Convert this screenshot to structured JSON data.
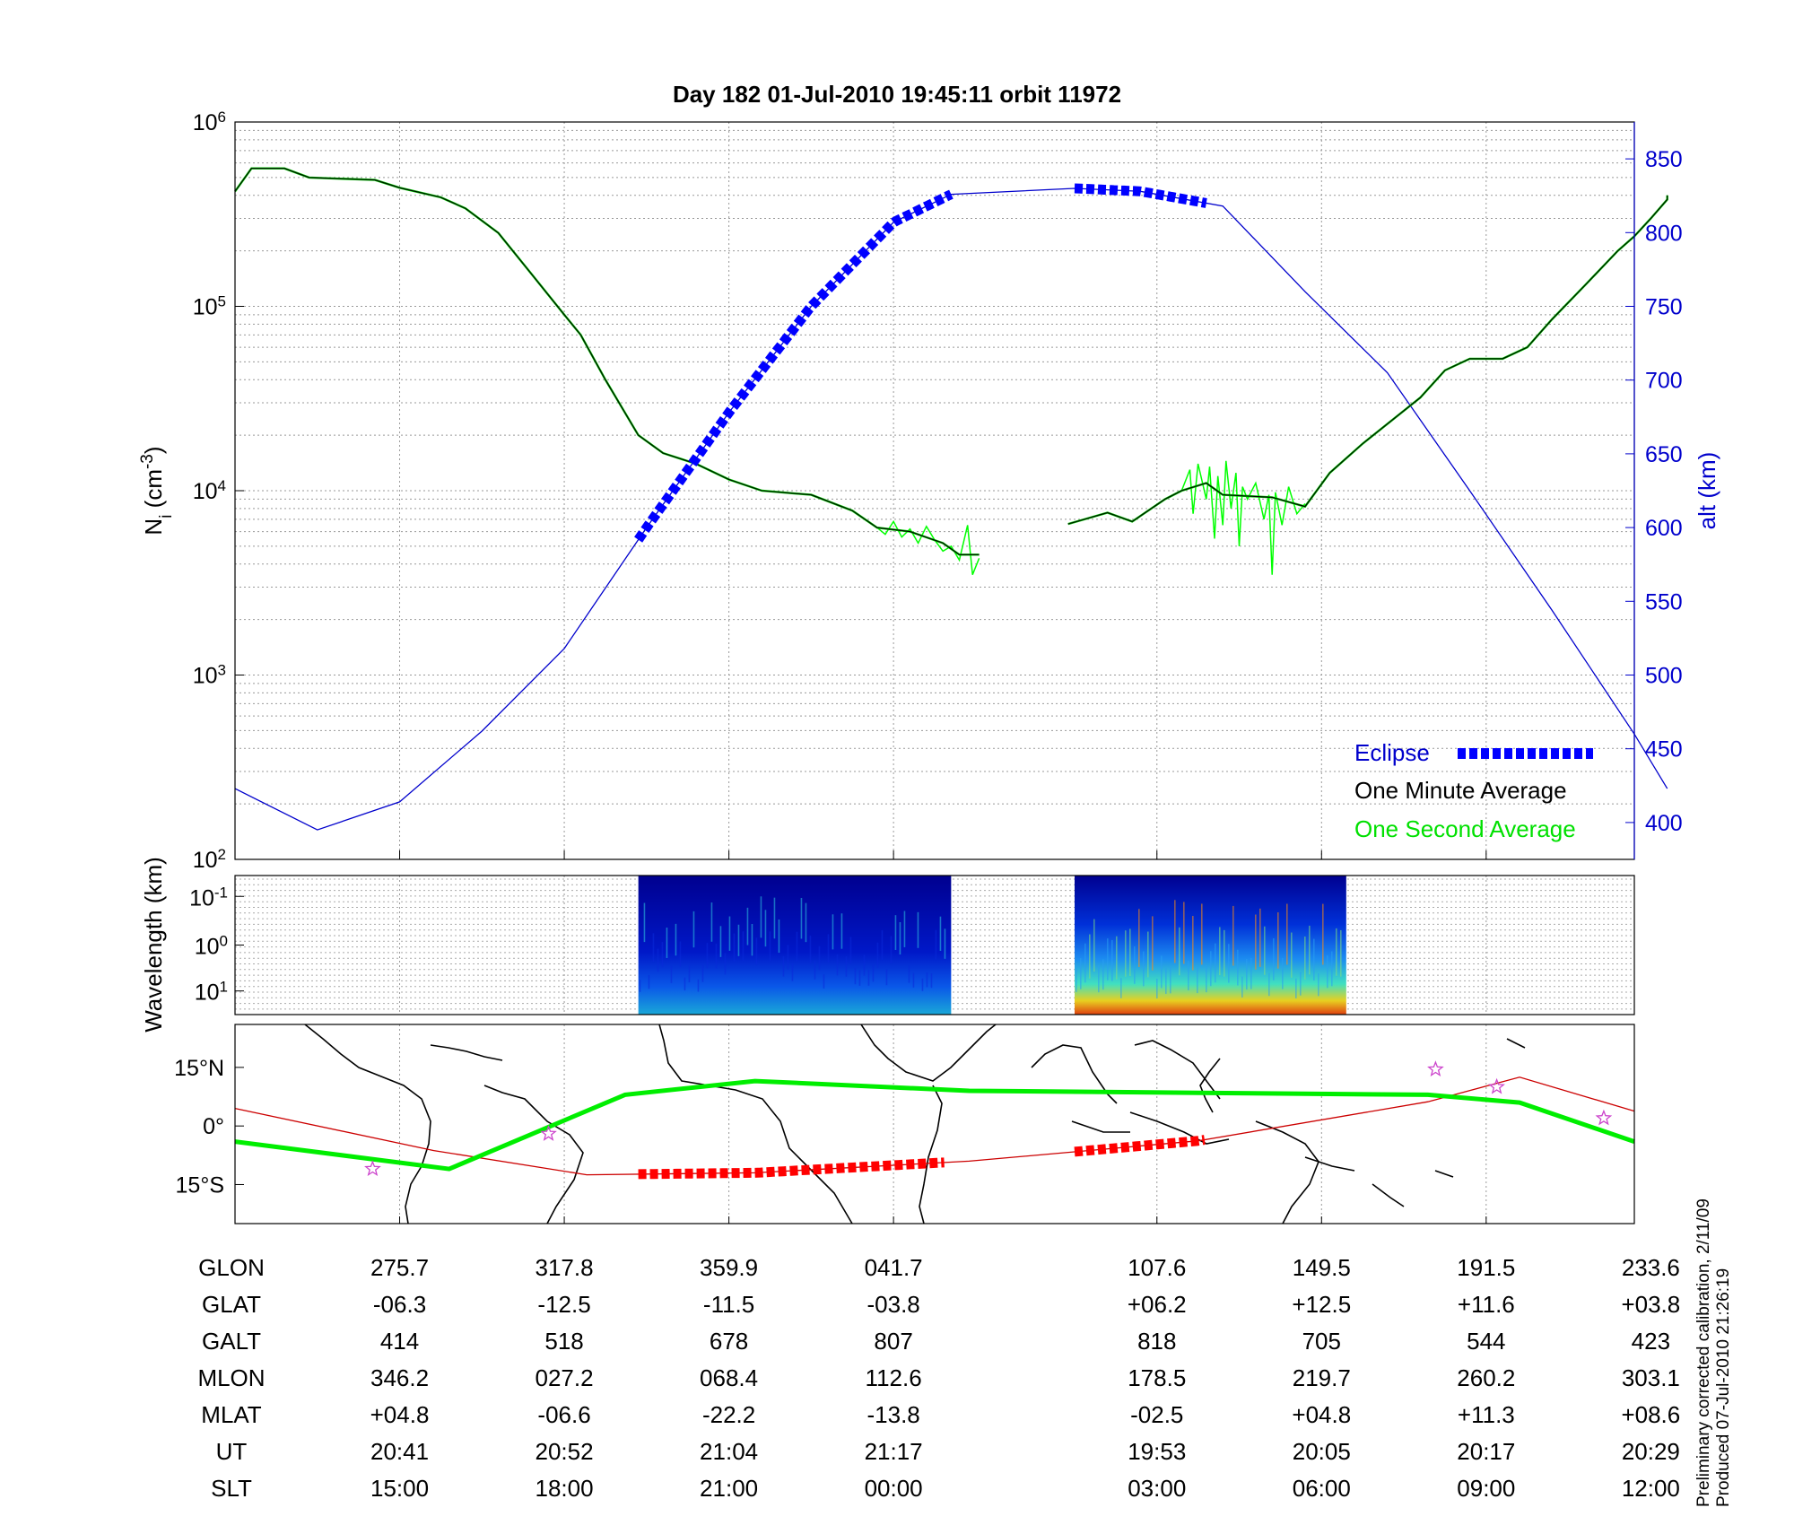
{
  "chart_data": [
    {
      "type": "line",
      "title": "Day 182  01-Jul-2010 19:45:11   orbit 11972",
      "ylabel": "N_i (cm^-3)",
      "ylabel_base": "N",
      "ylabel_sub": "i",
      "ylabel_unit_pre": " (cm",
      "ylabel_unit_sup": "-3",
      "ylabel_unit_post": ")",
      "yscale": "log",
      "ylim": [
        100,
        1000000
      ],
      "ytick_base": "10",
      "yticks": [
        {
          "exp": "2",
          "v": 2
        },
        {
          "exp": "3",
          "v": 3
        },
        {
          "exp": "4",
          "v": 4
        },
        {
          "exp": "5",
          "v": 5
        },
        {
          "exp": "6",
          "v": 6
        }
      ],
      "y2label": "alt (km)",
      "y2lim": [
        375,
        875
      ],
      "y2ticks": [
        400,
        450,
        500,
        550,
        600,
        650,
        700,
        750,
        800,
        850
      ],
      "x_index_range": [
        -1,
        7.5
      ],
      "legend_position": "bottom-right",
      "legend": [
        "Eclipse",
        "One Minute Average",
        "One Second Average"
      ],
      "series": [
        {
          "name": "One Minute Average (Ni)",
          "color": "#000000",
          "points": [
            [
              -1.0,
              420000
            ],
            [
              -0.9,
              560000
            ],
            [
              -0.7,
              560000
            ],
            [
              -0.55,
              500000
            ],
            [
              -0.15,
              485000
            ],
            [
              0.0,
              440000
            ],
            [
              0.25,
              390000
            ],
            [
              0.4,
              340000
            ],
            [
              0.6,
              250000
            ],
            [
              0.8,
              150000
            ],
            [
              1.0,
              90000
            ],
            [
              1.1,
              70000
            ],
            [
              1.25,
              40000
            ],
            [
              1.45,
              20000
            ],
            [
              1.6,
              16000
            ],
            [
              1.8,
              14000
            ],
            [
              2.0,
              11500
            ],
            [
              2.2,
              10000
            ],
            [
              2.5,
              9500
            ],
            [
              2.75,
              7800
            ],
            [
              2.9,
              6300
            ],
            [
              3.1,
              6000
            ],
            [
              3.3,
              5200
            ],
            [
              3.4,
              4500
            ],
            [
              3.52,
              4500
            ],
            [
              4.06,
              6600
            ],
            [
              4.3,
              7600
            ],
            [
              4.45,
              6800
            ],
            [
              4.65,
              9000
            ],
            [
              4.75,
              10000
            ],
            [
              4.9,
              11000
            ],
            [
              5.0,
              9500
            ],
            [
              5.3,
              9200
            ],
            [
              5.5,
              8200
            ],
            [
              5.65,
              12500
            ],
            [
              5.85,
              18000
            ],
            [
              6.05,
              25000
            ],
            [
              6.2,
              32000
            ],
            [
              6.35,
              45000
            ],
            [
              6.5,
              52000
            ],
            [
              6.7,
              52000
            ],
            [
              6.85,
              60000
            ],
            [
              7.0,
              85000
            ],
            [
              7.2,
              130000
            ],
            [
              7.4,
              200000
            ],
            [
              7.5,
              240000
            ],
            [
              7.6,
              300000
            ],
            [
              7.7,
              380000
            ],
            [
              7.7,
              400000
            ]
          ]
        },
        {
          "name": "One Second Average (Ni) noisy segments",
          "color": "#00ff00",
          "points_a": [
            [
              2.9,
              6300
            ],
            [
              2.95,
              5800
            ],
            [
              3.0,
              6800
            ],
            [
              3.05,
              5600
            ],
            [
              3.1,
              6200
            ],
            [
              3.15,
              5200
            ],
            [
              3.2,
              6400
            ],
            [
              3.25,
              5400
            ],
            [
              3.3,
              4700
            ],
            [
              3.35,
              5000
            ],
            [
              3.4,
              4200
            ],
            [
              3.45,
              6500
            ],
            [
              3.48,
              3500
            ],
            [
              3.52,
              4300
            ]
          ],
          "points_b": [
            [
              4.75,
              10000
            ],
            [
              4.8,
              13000
            ],
            [
              4.82,
              7500
            ],
            [
              4.85,
              14000
            ],
            [
              4.9,
              9000
            ],
            [
              4.92,
              13500
            ],
            [
              4.95,
              5500
            ],
            [
              4.97,
              12000
            ],
            [
              5.0,
              6500
            ],
            [
              5.02,
              14500
            ],
            [
              5.05,
              8000
            ],
            [
              5.08,
              12500
            ],
            [
              5.1,
              5000
            ],
            [
              5.12,
              10500
            ],
            [
              5.15,
              9000
            ],
            [
              5.2,
              11000
            ],
            [
              5.25,
              7000
            ],
            [
              5.28,
              9500
            ],
            [
              5.3,
              3500
            ],
            [
              5.32,
              9800
            ],
            [
              5.36,
              6500
            ],
            [
              5.4,
              10500
            ],
            [
              5.45,
              7500
            ],
            [
              5.5,
              8500
            ]
          ]
        },
        {
          "name": "Altitude (km)",
          "color": "#0000cc",
          "axis": "right",
          "points": [
            [
              -1.0,
              423
            ],
            [
              -0.5,
              395
            ],
            [
              0.0,
              414
            ],
            [
              0.5,
              462
            ],
            [
              1.0,
              518
            ],
            [
              1.5,
              600
            ],
            [
              2.0,
              678
            ],
            [
              2.5,
              750
            ],
            [
              3.0,
              807
            ],
            [
              3.35,
              826
            ],
            [
              4.1,
              830
            ],
            [
              4.5,
              828
            ],
            [
              5.0,
              818
            ],
            [
              5.5,
              760
            ],
            [
              6.0,
              705
            ],
            [
              6.5,
              625
            ],
            [
              7.0,
              544
            ],
            [
              7.5,
              460
            ],
            [
              7.7,
              423
            ]
          ]
        },
        {
          "name": "Eclipse",
          "color": "#0000ff",
          "axis": "right",
          "segments": [
            {
              "from": 1.45,
              "to": 3.35
            },
            {
              "from": 4.1,
              "to": 4.9
            }
          ]
        }
      ]
    },
    {
      "type": "heatmap",
      "ylabel": "Wavelength (km)",
      "yscale": "log",
      "ytick_base": "10",
      "yticks": [
        {
          "label_exp": "-1",
          "pos": 0.15
        },
        {
          "label_exp": "0",
          "pos": 0.5
        },
        {
          "label_exp": "1",
          "pos": 0.83
        }
      ],
      "segments": [
        {
          "from": 1.45,
          "to": 3.35
        },
        {
          "from": 4.1,
          "to": 5.75
        }
      ],
      "colormap": "jet"
    },
    {
      "type": "map",
      "ylabel_ticks": [
        "15°N",
        "0°",
        "15°S"
      ],
      "lat_range": [
        -25,
        26
      ],
      "lon_range": [
        234,
        417
      ],
      "orbit_track_color": "#cc0000",
      "magnetic_equator_color": "#00ee00",
      "star_color": "#cc44cc",
      "orbit_track": [
        [
          234,
          4.5
        ],
        [
          260,
          -6.3
        ],
        [
          280,
          -12.5
        ],
        [
          302,
          -12.0
        ],
        [
          330,
          -9.0
        ],
        [
          360,
          -3.8
        ],
        [
          390,
          6.2
        ],
        [
          402,
          12.5
        ],
        [
          417,
          3.8
        ]
      ],
      "magnetic_equator": [
        [
          234,
          -4.0
        ],
        [
          262,
          -11.0
        ],
        [
          285,
          8.0
        ],
        [
          302,
          11.5
        ],
        [
          330,
          9.0
        ],
        [
          360,
          8.5
        ],
        [
          390,
          8.0
        ],
        [
          402,
          6.0
        ],
        [
          417,
          -4.0
        ]
      ],
      "stars": [
        [
          252,
          -11.0
        ],
        [
          275,
          -2.0
        ],
        [
          391,
          14.5
        ],
        [
          399,
          10.0
        ],
        [
          413,
          2.0
        ]
      ]
    }
  ],
  "table": {
    "row_labels": [
      "GLON",
      "GLAT",
      "GALT",
      "MLON",
      "MLAT",
      "UT",
      "SLT"
    ],
    "columns": [
      [
        "275.7",
        "-06.3",
        "414",
        "346.2",
        "+04.8",
        "20:41",
        "15:00"
      ],
      [
        "317.8",
        "-12.5",
        "518",
        "027.2",
        "-06.6",
        "20:52",
        "18:00"
      ],
      [
        "359.9",
        "-11.5",
        "678",
        "068.4",
        "-22.2",
        "21:04",
        "21:00"
      ],
      [
        "041.7",
        "-03.8",
        "807",
        "112.6",
        "-13.8",
        "21:17",
        "00:00"
      ],
      [
        "107.6",
        "+06.2",
        "818",
        "178.5",
        "-02.5",
        "19:53",
        "03:00"
      ],
      [
        "149.5",
        "+12.5",
        "705",
        "219.7",
        "+04.8",
        "20:05",
        "06:00"
      ],
      [
        "191.5",
        "+11.6",
        "544",
        "260.2",
        "+11.3",
        "20:17",
        "09:00"
      ],
      [
        "233.6",
        "+03.8",
        "423",
        "303.1",
        "+08.6",
        "20:29",
        "12:00"
      ]
    ]
  },
  "side_note": [
    "Preliminary corrected calibration, 2/11/09",
    "Produced 07-Jul-2010 21:26:19"
  ],
  "colors": {
    "eclipse": "#0000ff",
    "one_minute": "#000000",
    "one_second": "#00ff00",
    "altitude": "#0000cc",
    "orbit_eclipse_marks": "#ff0000"
  }
}
